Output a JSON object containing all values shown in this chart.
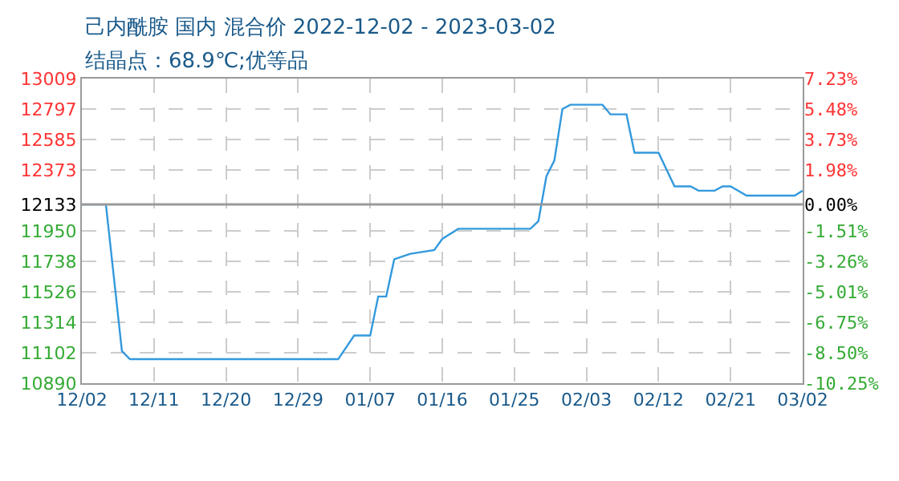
{
  "chart_data": {
    "type": "line",
    "title": "己内酰胺 国内 混合价 2022-12-02 - 2023-03-02",
    "subtitle": "结晶点：68.9℃;优等品",
    "x": [
      "2022-12-02",
      "2022-12-05",
      "2022-12-06",
      "2022-12-07",
      "2022-12-08",
      "2023-01-03",
      "2023-01-05",
      "2023-01-07",
      "2023-01-08",
      "2023-01-09",
      "2023-01-10",
      "2023-01-12",
      "2023-01-15",
      "2023-01-16",
      "2023-01-18",
      "2023-01-27",
      "2023-01-28",
      "2023-01-29",
      "2023-01-30",
      "2023-01-31",
      "2023-02-01",
      "2023-02-05",
      "2023-02-06",
      "2023-02-08",
      "2023-02-09",
      "2023-02-12",
      "2023-02-14",
      "2023-02-16",
      "2023-02-17",
      "2023-02-19",
      "2023-02-20",
      "2023-02-21",
      "2023-02-23",
      "2023-03-01",
      "2023-03-02"
    ],
    "series": [
      {
        "color": "#3399dd",
        "values": [
          12133,
          12133,
          11626,
          11114,
          11057,
          11057,
          11222,
          11222,
          11493,
          11493,
          11752,
          11790,
          11816,
          11894,
          11964,
          11964,
          12017,
          12329,
          12440,
          12797,
          12827,
          12827,
          12760,
          12760,
          12493,
          12493,
          12259,
          12259,
          12229,
          12229,
          12259,
          12259,
          12195,
          12195,
          12229
        ]
      }
    ],
    "xlim": [
      "2022-12-02",
      "2023-03-02"
    ],
    "xticks": [
      {
        "value": "2022-12-02",
        "label": "12/02"
      },
      {
        "value": "2022-12-11",
        "label": "12/11"
      },
      {
        "value": "2022-12-20",
        "label": "12/20"
      },
      {
        "value": "2022-12-29",
        "label": "12/29"
      },
      {
        "value": "2023-01-07",
        "label": "01/07"
      },
      {
        "value": "2023-01-16",
        "label": "01/16"
      },
      {
        "value": "2023-01-25",
        "label": "01/25"
      },
      {
        "value": "2023-02-03",
        "label": "02/03"
      },
      {
        "value": "2023-02-12",
        "label": "02/12"
      },
      {
        "value": "2023-02-21",
        "label": "02/21"
      },
      {
        "value": "2023-03-02",
        "label": "03/02"
      }
    ],
    "ylim": [
      10890,
      13009
    ],
    "yticks": [
      13009,
      12797,
      12585,
      12373,
      12133,
      11950,
      11738,
      11526,
      11314,
      11102,
      10890
    ],
    "y2lim": [
      -10.25,
      7.23
    ],
    "y2ticks": [
      {
        "value": 7.23,
        "label": "7.23%"
      },
      {
        "value": 5.48,
        "label": "5.48%"
      },
      {
        "value": 3.73,
        "label": "3.73%"
      },
      {
        "value": 1.98,
        "label": "1.98%"
      },
      {
        "value": 0,
        "label": "0.00%"
      },
      {
        "value": -1.51,
        "label": "-1.51%"
      },
      {
        "value": -3.26,
        "label": "-3.26%"
      },
      {
        "value": -5.01,
        "label": "-5.01%"
      },
      {
        "value": -6.75,
        "label": "-6.75%"
      },
      {
        "value": -8.5,
        "label": "-8.50%"
      },
      {
        "value": -10.25,
        "label": "-10.25%"
      }
    ],
    "ref_lines": [
      {
        "axis": "y",
        "value": 12133,
        "color": "#999999",
        "line_style": "solid"
      }
    ],
    "grid": true,
    "marker": "none",
    "line_style": "solid"
  }
}
